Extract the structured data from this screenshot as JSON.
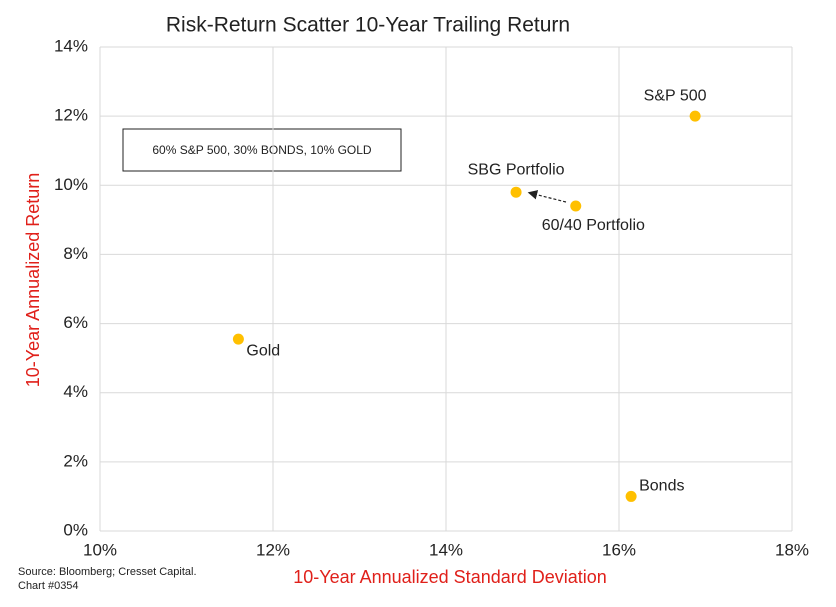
{
  "chart_data": {
    "type": "scatter",
    "title": "Risk-Return Scatter 10-Year Trailing Return",
    "x_label": "10-Year Annualized Standard Deviation",
    "y_label": "10-Year Annualized Return",
    "annotation": "60% S&P 500, 30% BONDS, 10% GOLD",
    "source": "Source: Bloomberg; Cresset Capital.",
    "chart_number": "Chart #0354",
    "point_labels": [
      "S&P 500",
      "SBG Portfolio",
      "60/40 Portfolio",
      "Gold",
      "Bonds"
    ],
    "x": [
      16.88,
      14.81,
      15.5,
      11.6,
      16.14
    ],
    "values": [
      12.0,
      9.8,
      9.4,
      5.55,
      1.0
    ],
    "color": "#ffc000",
    "xlim": [
      10,
      18
    ],
    "xticks": [
      {
        "value": 10,
        "label": "10%"
      },
      {
        "value": 12,
        "label": "12%"
      },
      {
        "value": 14,
        "label": "14%"
      },
      {
        "value": 16,
        "label": "16%"
      },
      {
        "value": 18,
        "label": "18%"
      }
    ],
    "ylim": [
      0,
      14
    ],
    "yticks": [
      {
        "value": 0,
        "label": "0%"
      },
      {
        "value": 2,
        "label": "2%"
      },
      {
        "value": 4,
        "label": "4%"
      },
      {
        "value": 6,
        "label": "6%"
      },
      {
        "value": 8,
        "label": "8%"
      },
      {
        "value": 10,
        "label": "10%"
      },
      {
        "value": 12,
        "label": "12%"
      },
      {
        "value": 14,
        "label": "14%"
      }
    ],
    "grid": true
  }
}
